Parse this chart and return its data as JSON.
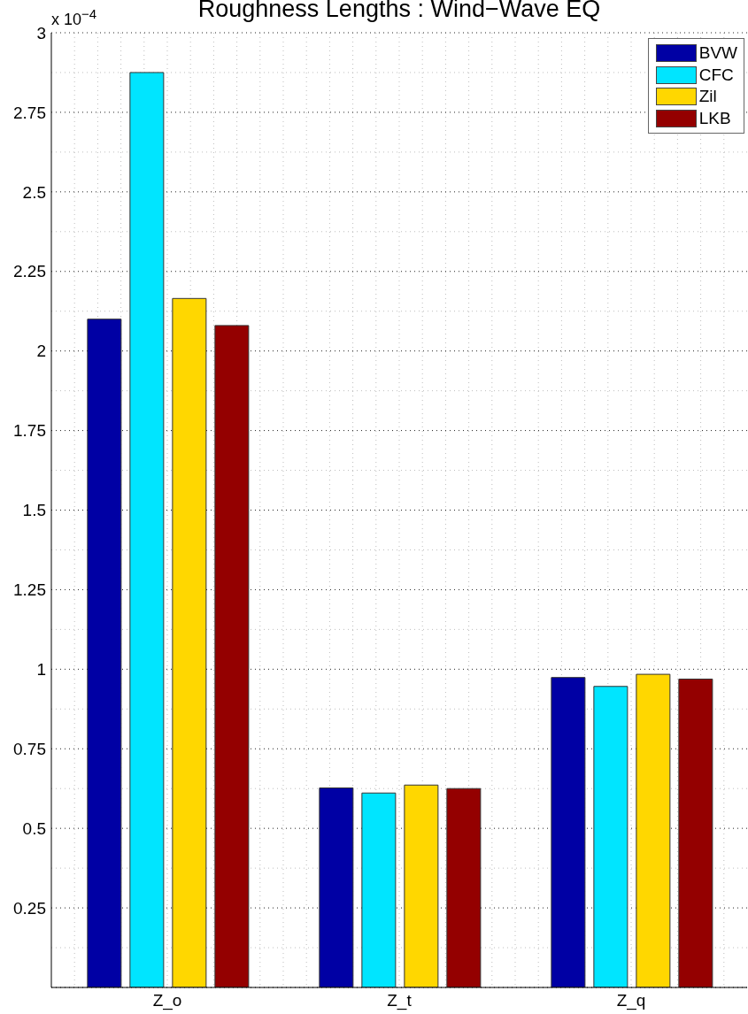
{
  "chart_data": {
    "type": "bar",
    "title": "Roughness Lengths : Wind−Wave EQ",
    "annotations": [
      "x 10$^{−4}$"
    ],
    "categories": [
      "Z_o",
      "Z_t",
      "Z_q"
    ],
    "series": [
      {
        "name": "BVW",
        "color": "#0000a4",
        "values": [
          2.1,
          0.627,
          0.974
        ]
      },
      {
        "name": "CFC",
        "color": "#00e5ff",
        "values": [
          2.875,
          0.611,
          0.946
        ]
      },
      {
        "name": "Zil",
        "color": "#ffd700",
        "values": [
          2.165,
          0.636,
          0.984
        ]
      },
      {
        "name": "LKB",
        "color": "#940000",
        "values": [
          2.08,
          0.625,
          0.969
        ]
      }
    ],
    "ylim": [
      0,
      3
    ],
    "yticks": [
      0.25,
      0.5,
      0.75,
      1,
      1.25,
      1.5,
      1.75,
      2,
      2.25,
      2.5,
      2.75,
      3
    ],
    "grid": true,
    "legend": "top right"
  }
}
